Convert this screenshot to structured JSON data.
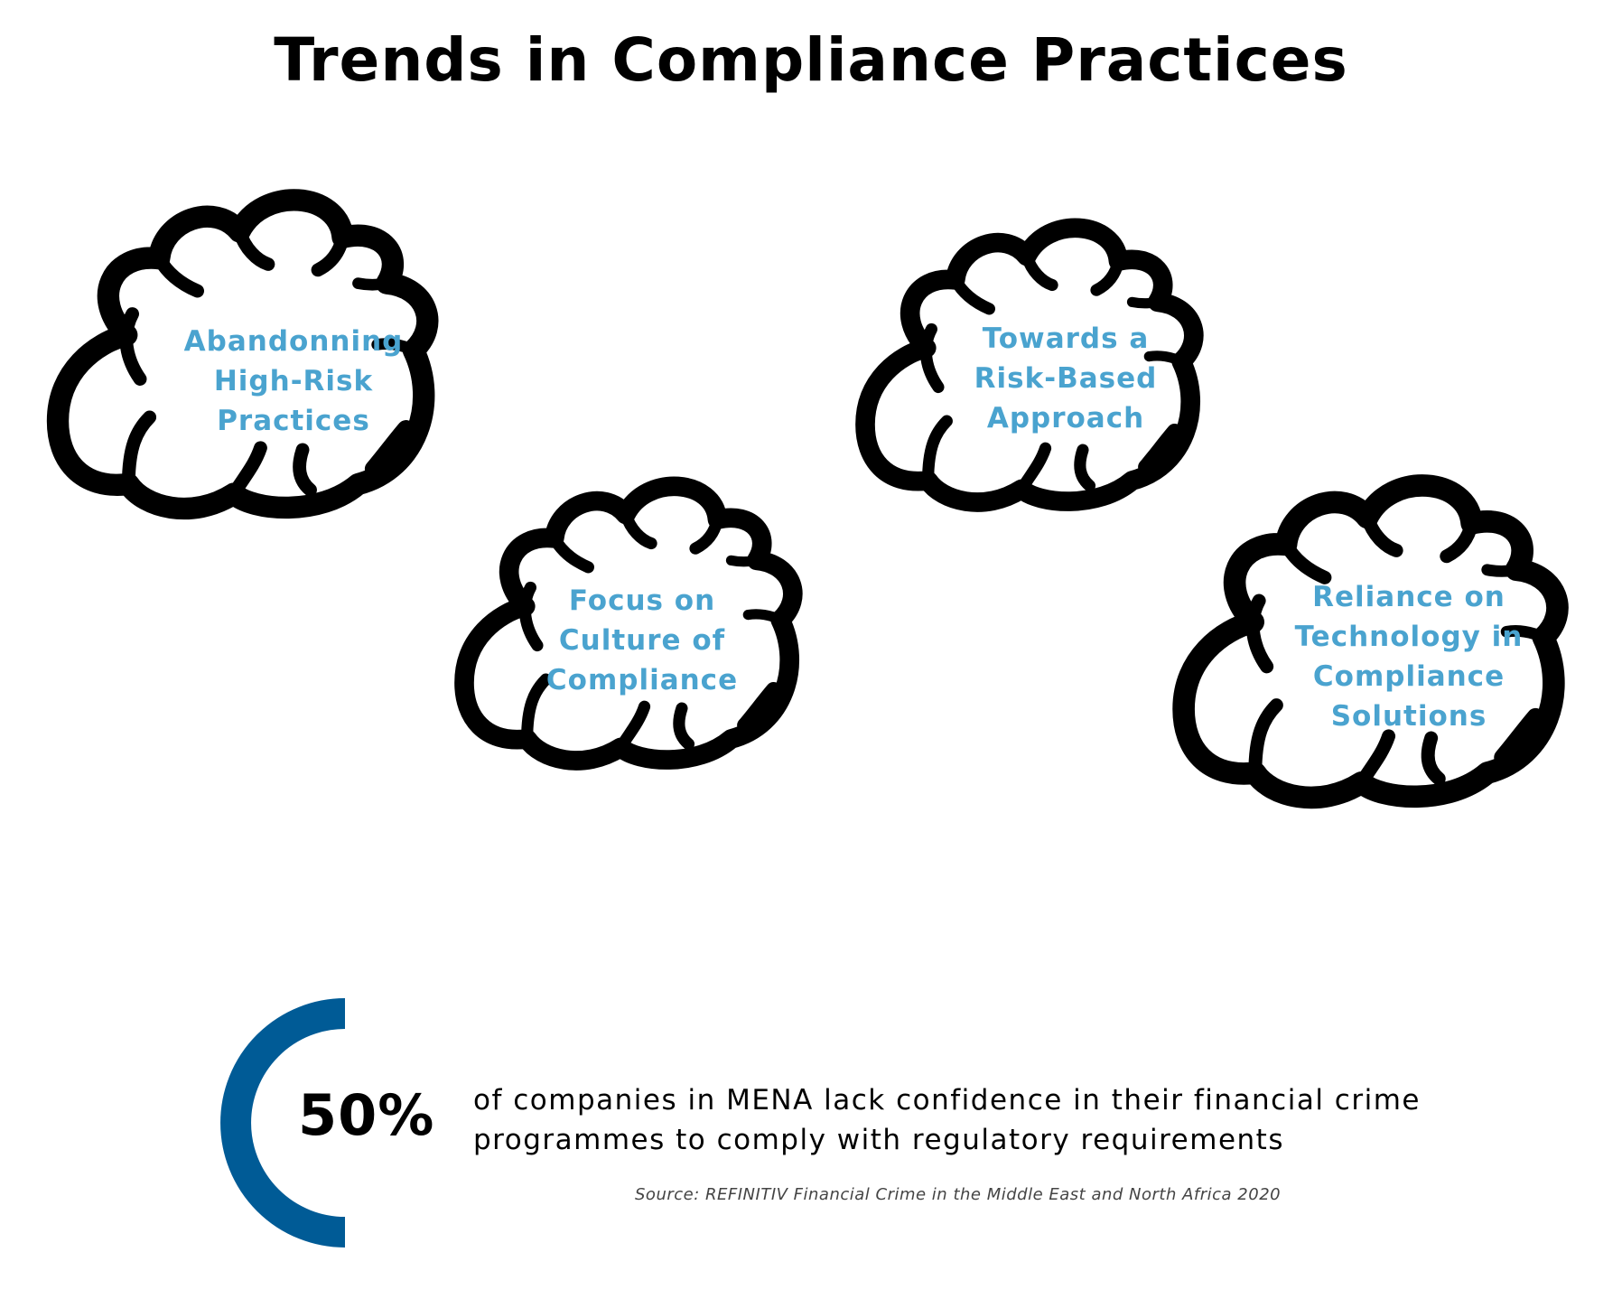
{
  "title": "Trends in Compliance Practices",
  "clouds": [
    {
      "lines": [
        "Abandonning",
        "High-Risk",
        "Practices"
      ]
    },
    {
      "lines": [
        "Towards a",
        "Risk-Based",
        "Approach"
      ]
    },
    {
      "lines": [
        "Focus on",
        "Culture of",
        "Compliance"
      ]
    },
    {
      "lines": [
        "Reliance on",
        "Technology in",
        "Compliance",
        "Solutions"
      ]
    }
  ],
  "stat": {
    "value": "50%",
    "progress_fraction": 0.5,
    "lines": [
      "of companies in MENA lack confidence in their financial crime",
      "programmes to comply with regulatory requirements"
    ],
    "source": "Source: REFINITIV Financial Crime in the Middle East and North Africa 2020"
  },
  "colors": {
    "title": "#000000",
    "cloud_outline": "#000000",
    "cloud_text": "#4aa3cf",
    "ring": "#005b96"
  }
}
